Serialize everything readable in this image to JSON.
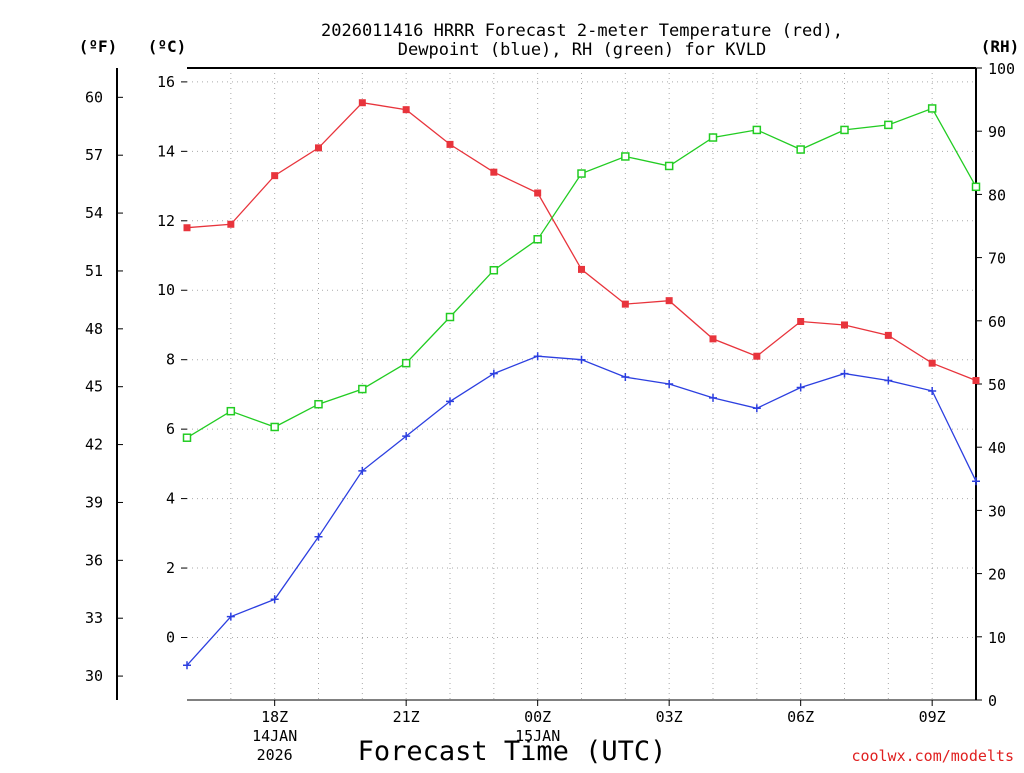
{
  "chart_data": {
    "type": "line",
    "title": [
      "2026011416 HRRR Forecast 2-meter Temperature (red),",
      "Dewpoint (blue), RH (green) for KVLD"
    ],
    "xlabel": "Forecast Time (UTC)",
    "credit": "coolwx.com/modelts",
    "unit_labels": {
      "fahrenheit": "(ºF)",
      "celsius": "(ºC)",
      "rh": "(RH)"
    },
    "x_hours": [
      16,
      17,
      18,
      19,
      20,
      21,
      22,
      23,
      24,
      25,
      26,
      27,
      28,
      29,
      30,
      31,
      32,
      33,
      34
    ],
    "xlim": [
      16,
      34
    ],
    "x_ticks": [
      {
        "hour": 18,
        "label": "18Z",
        "sub": [
          "14JAN",
          "2026"
        ]
      },
      {
        "hour": 21,
        "label": "21Z",
        "sub": []
      },
      {
        "hour": 24,
        "label": "00Z",
        "sub": [
          "15JAN"
        ]
      },
      {
        "hour": 27,
        "label": "03Z",
        "sub": []
      },
      {
        "hour": 30,
        "label": "06Z",
        "sub": []
      },
      {
        "hour": 33,
        "label": "09Z",
        "sub": []
      }
    ],
    "celsius_axis": {
      "range": [
        -1.8,
        16.4
      ],
      "ticks": [
        0,
        2,
        4,
        6,
        8,
        10,
        12,
        14,
        16
      ]
    },
    "fahrenheit_axis": {
      "ticks": [
        30,
        33,
        36,
        39,
        42,
        45,
        48,
        51,
        54,
        57,
        60
      ]
    },
    "rh_axis": {
      "range": [
        0,
        100
      ],
      "ticks": [
        0,
        10,
        20,
        30,
        40,
        50,
        60,
        70,
        80,
        90,
        100
      ]
    },
    "series": [
      {
        "name": "Temperature",
        "axis": "celsius",
        "color": "#e8343c",
        "marker": "filled-square",
        "values": [
          11.8,
          11.9,
          13.3,
          14.1,
          15.4,
          15.2,
          14.2,
          13.4,
          12.8,
          10.6,
          9.6,
          9.7,
          8.6,
          8.1,
          9.1,
          9.0,
          8.7,
          7.9,
          7.4
        ]
      },
      {
        "name": "Dewpoint",
        "axis": "celsius",
        "color": "#2c3fe0",
        "marker": "plus",
        "values": [
          -0.8,
          0.6,
          1.1,
          2.9,
          4.8,
          5.8,
          6.8,
          7.6,
          8.1,
          8.0,
          7.5,
          7.3,
          6.9,
          6.6,
          7.2,
          7.6,
          7.4,
          7.1,
          4.5
        ]
      },
      {
        "name": "RH",
        "axis": "rh",
        "color": "#22cc22",
        "marker": "open-square",
        "values": [
          41.5,
          45.7,
          43.2,
          46.8,
          49.2,
          53.3,
          60.6,
          68.0,
          72.9,
          83.3,
          86.0,
          84.5,
          89.0,
          90.2,
          87.1,
          90.2,
          91.0,
          93.6,
          81.2
        ]
      }
    ]
  }
}
